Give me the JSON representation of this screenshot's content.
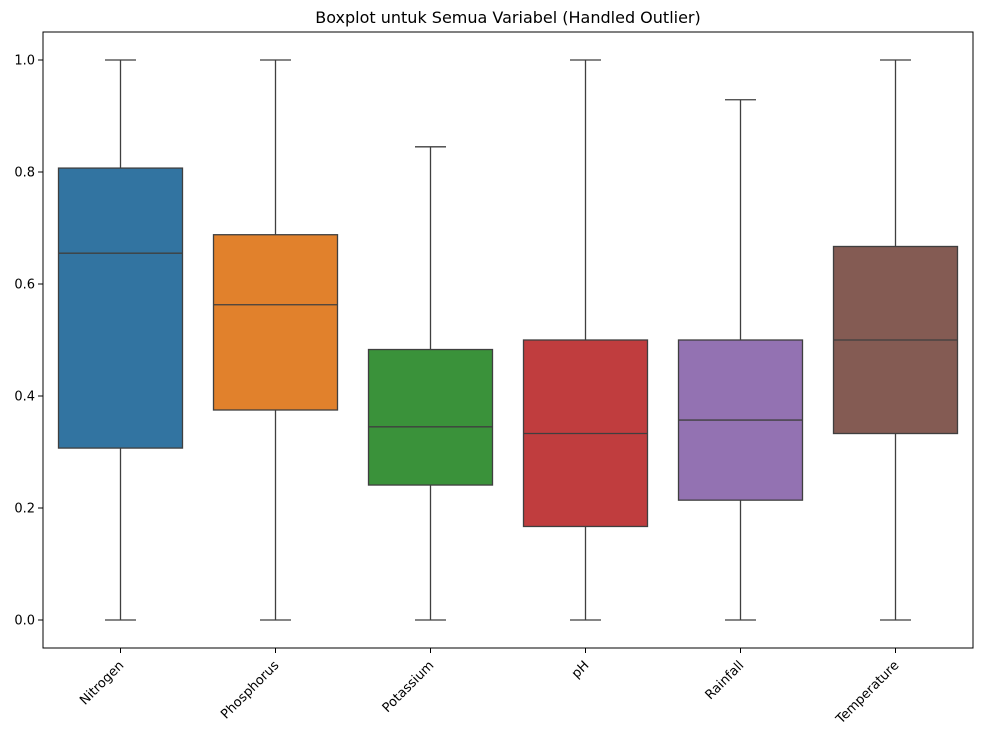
{
  "chart_data": {
    "type": "box",
    "title": "Boxplot untuk Semua Variabel (Handled Outlier)",
    "xlabel": "",
    "ylabel": "",
    "ylim": [
      -0.05,
      1.05
    ],
    "yticks": [
      "0.0",
      "0.2",
      "0.4",
      "0.6",
      "0.8",
      "1.0"
    ],
    "categories": [
      "Nitrogen",
      "Phosphorus",
      "Potassium",
      "pH",
      "Rainfall",
      "Temperature"
    ],
    "series": [
      {
        "category": "Nitrogen",
        "whisker_low": 0.0,
        "q1": 0.307,
        "median": 0.655,
        "q3": 0.807,
        "whisker_high": 1.0,
        "color": "#3274a1"
      },
      {
        "category": "Phosphorus",
        "whisker_low": 0.0,
        "q1": 0.375,
        "median": 0.563,
        "q3": 0.688,
        "whisker_high": 1.0,
        "color": "#e1812c"
      },
      {
        "category": "Potassium",
        "whisker_low": 0.0,
        "q1": 0.241,
        "median": 0.345,
        "q3": 0.483,
        "whisker_high": 0.845,
        "color": "#3a923a"
      },
      {
        "category": "pH",
        "whisker_low": 0.0,
        "q1": 0.167,
        "median": 0.333,
        "q3": 0.5,
        "whisker_high": 1.0,
        "color": "#c03d3e"
      },
      {
        "category": "Rainfall",
        "whisker_low": 0.0,
        "q1": 0.214,
        "median": 0.357,
        "q3": 0.5,
        "whisker_high": 0.929,
        "color": "#9372b2"
      },
      {
        "category": "Temperature",
        "whisker_low": 0.0,
        "q1": 0.333,
        "median": 0.5,
        "q3": 0.667,
        "whisker_high": 1.0,
        "color": "#845b53"
      }
    ],
    "x_tick_rotation": "45 degrees",
    "grid": false,
    "legend": "none"
  }
}
